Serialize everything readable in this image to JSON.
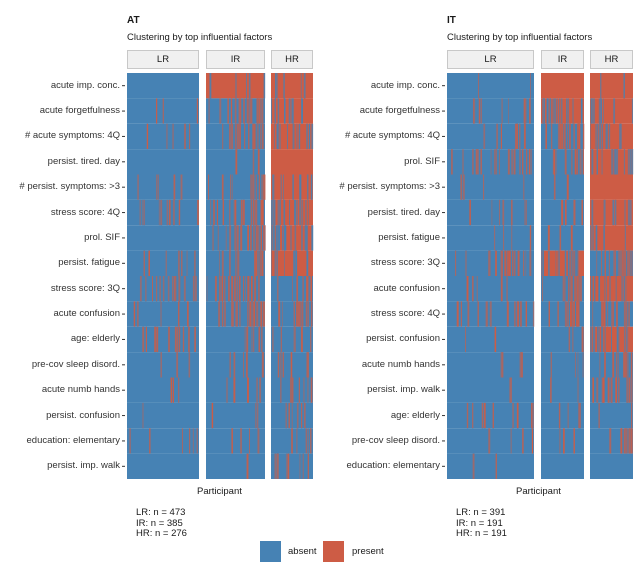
{
  "colors": {
    "absent": "#4682b4",
    "present": "#cd5c45"
  },
  "legend": {
    "absent_label": "absent",
    "present_label": "present"
  },
  "chart_data": [
    {
      "type": "heatmap",
      "title": "AT",
      "subtitle": "Clustering by top influential factors",
      "xlabel": "Participant",
      "ylabel": "",
      "facets": [
        "LR",
        "IR",
        "HR"
      ],
      "group_sizes": {
        "LR": 473,
        "IR": 385,
        "HR": 276
      },
      "caption_lines": [
        "LR: n = 473",
        "IR: n = 385",
        "HR: n = 276"
      ],
      "rows": [
        "acute imp. conc.",
        "acute forgetfulness",
        "# acute symptoms: 4Q",
        "persist. tired. day",
        "# persist. symptoms: >3",
        "stress score: 4Q",
        "prol. SIF",
        "persist. fatigue",
        "stress score: 3Q",
        "acute confusion",
        "age: elderly",
        "pre-cov sleep disord.",
        "acute numb hands",
        "persist. confusion",
        "education: elementary",
        "persist. imp. walk"
      ],
      "present_fraction": {
        "LR": [
          0.0,
          0.05,
          0.08,
          0.0,
          0.1,
          0.15,
          0.0,
          0.12,
          0.25,
          0.08,
          0.2,
          0.05,
          0.05,
          0.02,
          0.1,
          0.0
        ],
        "IR": [
          0.9,
          0.45,
          0.4,
          0.05,
          0.25,
          0.45,
          0.45,
          0.25,
          0.45,
          0.4,
          0.15,
          0.12,
          0.1,
          0.05,
          0.08,
          0.02
        ],
        "HR": [
          0.85,
          0.75,
          0.7,
          1.0,
          0.75,
          0.55,
          0.55,
          0.75,
          0.2,
          0.4,
          0.15,
          0.15,
          0.2,
          0.15,
          0.12,
          0.25
        ]
      },
      "legend_position": "bottom"
    },
    {
      "type": "heatmap",
      "title": "IT",
      "subtitle": "Clustering by top influential factors",
      "xlabel": "Participant",
      "ylabel": "",
      "facets": [
        "LR",
        "IR",
        "HR"
      ],
      "group_sizes": {
        "LR": 391,
        "IR": 191,
        "HR": 191
      },
      "caption_lines": [
        "LR: n = 391",
        "IR: n = 191",
        "HR: n = 191"
      ],
      "rows": [
        "acute imp. conc.",
        "acute forgetfulness",
        "# acute symptoms: 4Q",
        "prol. SIF",
        "# persist. symptoms: >3",
        "persist. tired. day",
        "persist. fatigue",
        "stress score: 3Q",
        "acute confusion",
        "stress score: 4Q",
        "persist. confusion",
        "acute numb hands",
        "persist. imp. walk",
        "age: elderly",
        "pre-cov sleep disord.",
        "education: elementary"
      ],
      "present_fraction": {
        "LR": [
          0.03,
          0.12,
          0.12,
          0.25,
          0.05,
          0.1,
          0.05,
          0.25,
          0.08,
          0.2,
          0.03,
          0.05,
          0.02,
          0.15,
          0.05,
          0.02
        ],
        "IR": [
          1.0,
          0.55,
          0.45,
          0.4,
          0.05,
          0.15,
          0.08,
          0.55,
          0.45,
          0.4,
          0.1,
          0.1,
          0.05,
          0.12,
          0.08,
          0.0
        ],
        "HR": [
          0.95,
          0.8,
          0.7,
          0.65,
          1.0,
          0.7,
          0.85,
          0.45,
          0.65,
          0.35,
          0.55,
          0.35,
          0.35,
          0.05,
          0.25,
          0.0
        ]
      },
      "legend_position": "bottom"
    }
  ]
}
